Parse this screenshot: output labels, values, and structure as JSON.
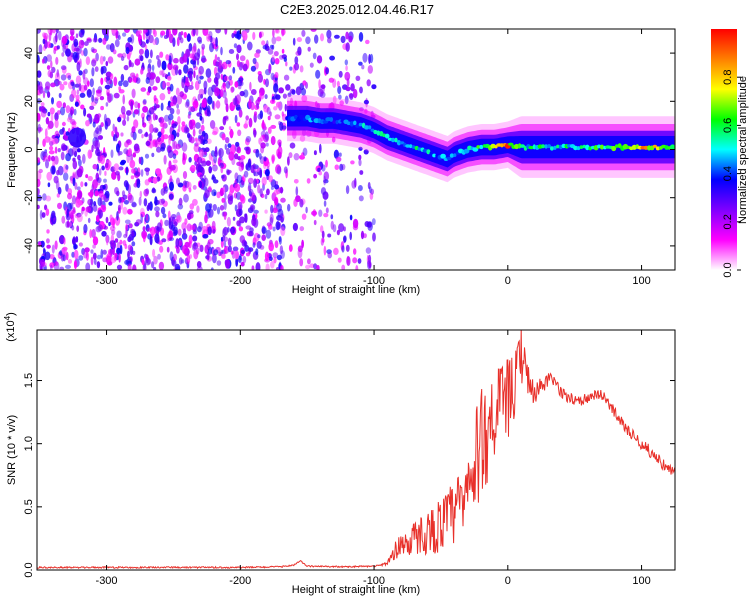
{
  "title": "C2E3.2025.012.04.46.R17",
  "chart_data": [
    {
      "type": "heatmap",
      "xlabel": "Height of straight line (km)",
      "ylabel": "Frequency (Hz)",
      "xlim": [
        -352,
        125
      ],
      "ylim": [
        -50,
        50
      ],
      "x_ticks": [
        -300,
        -200,
        -100,
        0,
        100
      ],
      "y_ticks": [
        -40,
        -20,
        0,
        20,
        40
      ],
      "colorbar": {
        "label": "Normalized spectral amplitude",
        "range": [
          0,
          1
        ],
        "ticks": [
          0.0,
          0.2,
          0.4,
          0.6,
          0.8
        ],
        "tick_labels": [
          "0.0",
          "0.2",
          "0.4",
          "0.6",
          "0.8"
        ],
        "colormap": [
          "#ffffff",
          "#ff00ff",
          "#7f00ff",
          "#0000ff",
          "#00ffff",
          "#00ff00",
          "#ffff00",
          "#ff7f00",
          "#ff0000"
        ]
      },
      "noise_region": {
        "x_range": [
          -352,
          -100
        ],
        "y_range": [
          -50,
          50
        ],
        "level": 0.15
      },
      "ridge": {
        "x": [
          -165,
          -150,
          -140,
          -130,
          -120,
          -110,
          -100,
          -90,
          -80,
          -70,
          -60,
          -50,
          -45,
          -40,
          -30,
          -20,
          -10,
          0,
          10,
          20,
          40,
          60,
          80,
          100,
          125
        ],
        "frequency": [
          13,
          13,
          12,
          12,
          11,
          10,
          8,
          5,
          3,
          1,
          -1,
          -3,
          -4,
          -2,
          0,
          1,
          1,
          2,
          1,
          1,
          1,
          1,
          1,
          1,
          1
        ],
        "width": [
          3,
          3,
          3,
          3,
          3,
          3,
          3,
          3,
          3,
          3,
          3,
          3,
          3,
          3,
          3,
          3,
          3,
          3,
          4,
          4,
          4,
          4,
          4,
          4,
          4
        ],
        "peak_level": [
          0.45,
          0.5,
          0.45,
          0.45,
          0.45,
          0.55,
          0.6,
          0.6,
          0.55,
          0.6,
          0.55,
          0.5,
          0.5,
          0.55,
          0.55,
          0.7,
          0.85,
          0.95,
          0.6,
          0.6,
          0.6,
          0.65,
          0.7,
          0.95,
          0.7
        ]
      }
    },
    {
      "type": "line",
      "xlabel": "Height of straight line (km)",
      "ylabel": "SNR (10 * v/v)",
      "y_multiplier": "(x10^4)",
      "xlim": [
        -352,
        125
      ],
      "ylim": [
        0,
        19000
      ],
      "x_ticks": [
        -300,
        -200,
        -100,
        0,
        100
      ],
      "y_ticks": [
        0,
        5000,
        10000,
        15000
      ],
      "y_tick_labels": [
        "0.0",
        "0.5",
        "1.0",
        "1.5"
      ],
      "color": "#e8302a",
      "series": [
        {
          "x": [
            -352,
            -300,
            -250,
            -200,
            -170,
            -160,
            -155,
            -150,
            -120,
            -100,
            -90,
            -85,
            -80,
            -70,
            -60,
            -50,
            -40,
            -30,
            -25,
            -20,
            -15,
            -10,
            -5,
            0,
            5,
            10,
            15,
            20,
            25,
            30,
            35,
            40,
            50,
            60,
            70,
            80,
            90,
            100,
            110,
            120,
            125
          ],
          "y": [
            200,
            200,
            200,
            200,
            250,
            400,
            700,
            300,
            250,
            300,
            500,
            1500,
            2000,
            2500,
            3000,
            3500,
            4500,
            6000,
            8000,
            10000,
            11500,
            12500,
            13000,
            13500,
            14500,
            17000,
            15000,
            14000,
            14500,
            15000,
            15000,
            14000,
            13500,
            13500,
            14000,
            12500,
            11000,
            10000,
            9000,
            8000,
            7500
          ],
          "noise_amplitude": [
            0,
            0,
            0,
            0,
            0,
            0,
            0,
            0,
            0,
            0,
            200,
            800,
            1200,
            1500,
            2000,
            2500,
            3000,
            4000,
            4500,
            5000,
            5000,
            4500,
            4000,
            3500,
            3000,
            2500,
            2000,
            1000,
            800,
            700,
            600,
            500,
            500,
            500,
            500,
            500,
            500,
            500,
            500,
            500,
            500
          ]
        }
      ]
    }
  ]
}
